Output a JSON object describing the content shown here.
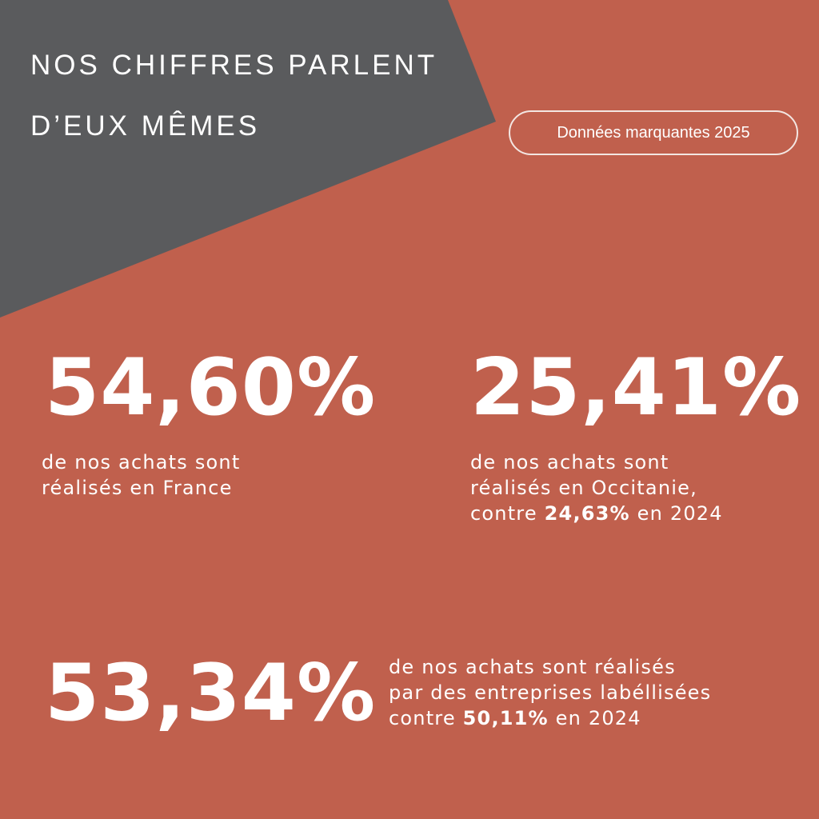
{
  "colors": {
    "background": "#c0604d",
    "shape": "#5a5b5d",
    "text": "#ffffff"
  },
  "header": {
    "title_line1": "NOS CHIFFRES PARLENT",
    "title_line2": "D’EUX MÊMES",
    "badge": "Données marquantes 2025"
  },
  "stats": [
    {
      "value": "54,60%",
      "line1": "de nos achats sont",
      "line2": "réalisés en France"
    },
    {
      "value": "25,41%",
      "line1": "de nos achats sont",
      "line2": "réalisés en Occitanie,",
      "line3_prefix": "contre ",
      "line3_bold": "24,63%",
      "line3_suffix": " en 2024"
    },
    {
      "value": "53,34%",
      "line1": "de nos achats sont réalisés",
      "line2": "par des entreprises labéllisées",
      "line3_prefix": "contre ",
      "line3_bold": "50,11%",
      "line3_suffix": " en 2024"
    }
  ]
}
